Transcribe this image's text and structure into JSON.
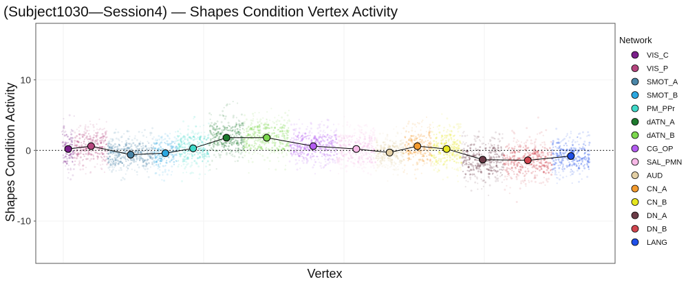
{
  "chart_data": {
    "type": "scatter",
    "title": "(Subject1030—Session4) — Shapes Condition Vertex Activity",
    "xlabel": "Vertex",
    "ylabel": "Shapes Condition Activity",
    "ylim": [
      -16,
      18
    ],
    "yticks": [
      {
        "value": 10,
        "label": "10"
      },
      {
        "value": 0,
        "label": "0"
      },
      {
        "value": -10,
        "label": "-10"
      }
    ],
    "reference_line": {
      "y": 0,
      "style": "dotted"
    },
    "legend": {
      "title": "Network",
      "position": "right"
    },
    "series": [
      {
        "name": "VIS_C",
        "color": "#7B1F8A",
        "mean": 0.2,
        "sd": 1.8,
        "width": 18
      },
      {
        "name": "VIS_P",
        "color": "#B5457E",
        "mean": 0.6,
        "sd": 1.6,
        "width": 48
      },
      {
        "name": "SMOT_A",
        "color": "#4A86A8",
        "mean": -0.6,
        "sd": 1.4,
        "width": 66
      },
      {
        "name": "SMOT_B",
        "color": "#2BA7E0",
        "mean": -0.4,
        "sd": 1.4,
        "width": 34
      },
      {
        "name": "PM_PPr",
        "color": "#3FD9C9",
        "mean": 0.3,
        "sd": 1.6,
        "width": 46
      },
      {
        "name": "dATN_A",
        "color": "#1E7A2E",
        "mean": 1.8,
        "sd": 1.7,
        "width": 50
      },
      {
        "name": "dATN_B",
        "color": "#7CD84E",
        "mean": 1.8,
        "sd": 1.6,
        "width": 66
      },
      {
        "name": "CG_OP",
        "color": "#B35CF0",
        "mean": 0.6,
        "sd": 1.5,
        "width": 68
      },
      {
        "name": "SAL_PMN",
        "color": "#F6B8E6",
        "mean": 0.2,
        "sd": 1.6,
        "width": 56
      },
      {
        "name": "AUD",
        "color": "#E3CFA4",
        "mean": -0.3,
        "sd": 1.4,
        "width": 40
      },
      {
        "name": "CN_A",
        "color": "#F39A2E",
        "mean": 0.6,
        "sd": 1.7,
        "width": 40
      },
      {
        "name": "CN_B",
        "color": "#E6E61E",
        "mean": 0.2,
        "sd": 1.8,
        "width": 44
      },
      {
        "name": "DN_A",
        "color": "#6B3B47",
        "mean": -1.3,
        "sd": 1.8,
        "width": 60
      },
      {
        "name": "DN_B",
        "color": "#D0454E",
        "mean": -1.4,
        "sd": 1.7,
        "width": 70
      },
      {
        "name": "LANG",
        "color": "#1F4FE8",
        "mean": -0.8,
        "sd": 1.6,
        "width": 54
      }
    ]
  }
}
